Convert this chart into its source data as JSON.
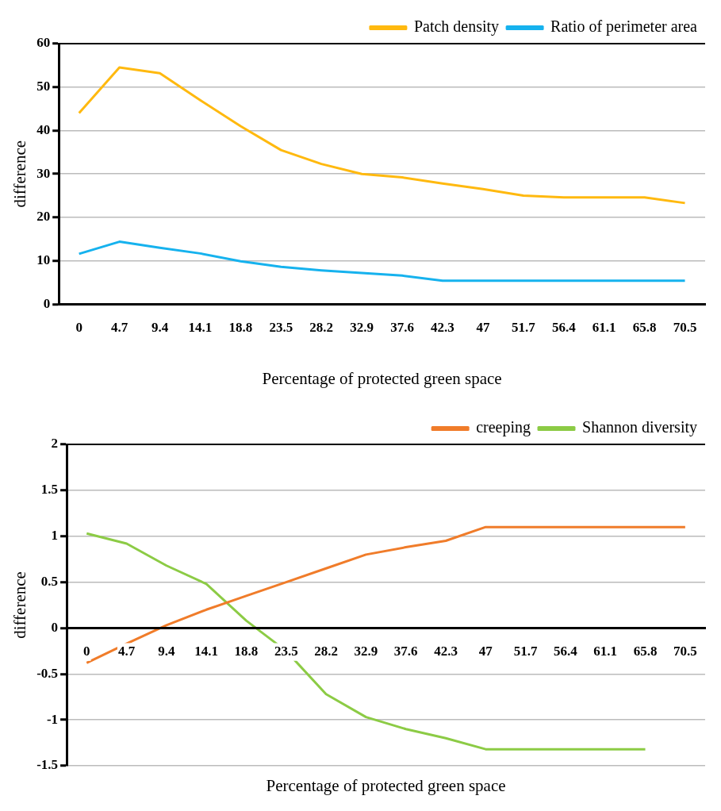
{
  "chart_data": [
    {
      "type": "line",
      "xlabel": "Percentage of protected green space",
      "ylabel": "difference",
      "categories": [
        "0",
        "4.7",
        "9.4",
        "14.1",
        "18.8",
        "23.5",
        "28.2",
        "32.9",
        "37.6",
        "42.3",
        "47",
        "51.7",
        "56.4",
        "61.1",
        "65.8",
        "70.5"
      ],
      "series": [
        {
          "name": "Patch density",
          "color": "#ffb90f",
          "values": [
            44,
            54.5,
            53.2,
            47,
            41,
            35.5,
            32.3,
            30,
            29.2,
            27.8,
            26.5,
            25,
            24.6,
            24.6,
            24.6,
            23.3
          ]
        },
        {
          "name": "Ratio of perimeter area",
          "color": "#16b2ee",
          "values": [
            11.6,
            14.4,
            13,
            11.7,
            9.9,
            8.6,
            7.8,
            7.2,
            6.6,
            5.4,
            5.4,
            5.4,
            5.4,
            5.4,
            5.4,
            5.4
          ]
        }
      ],
      "ylim": [
        0,
        60
      ],
      "yticks": [
        0,
        10,
        20,
        30,
        40,
        50,
        60
      ],
      "grid": "y",
      "legend": "top right",
      "marker": "none",
      "line_style": "solid"
    },
    {
      "type": "line",
      "xlabel": "Percentage of protected green space",
      "ylabel": "difference",
      "categories": [
        "0",
        "4.7",
        "9.4",
        "14.1",
        "18.8",
        "23.5",
        "28.2",
        "32.9",
        "37.6",
        "42.3",
        "47",
        "51.7",
        "56.4",
        "61.1",
        "65.8",
        "70.5"
      ],
      "series": [
        {
          "name": "creeping",
          "color": "#f07c2a",
          "values": [
            -0.38,
            -0.17,
            0.03,
            0.2,
            0.35,
            0.5,
            0.65,
            0.8,
            0.88,
            0.95,
            1.1,
            1.1,
            1.1,
            1.1,
            1.1,
            1.1
          ]
        },
        {
          "name": "Shannon diversity",
          "color": "#8ccb45",
          "values": [
            1.03,
            0.92,
            0.68,
            0.48,
            0.08,
            -0.25,
            -0.72,
            -0.97,
            -1.1,
            -1.2,
            -1.32,
            -1.32,
            -1.32,
            -1.32,
            -1.32,
            null
          ]
        }
      ],
      "ylim": [
        -1.5,
        2
      ],
      "yticks": [
        -1.5,
        -1,
        -0.5,
        0,
        0.5,
        1,
        1.5,
        2
      ],
      "grid": "y",
      "legend": "top right",
      "marker": "none",
      "line_style": "solid"
    }
  ]
}
